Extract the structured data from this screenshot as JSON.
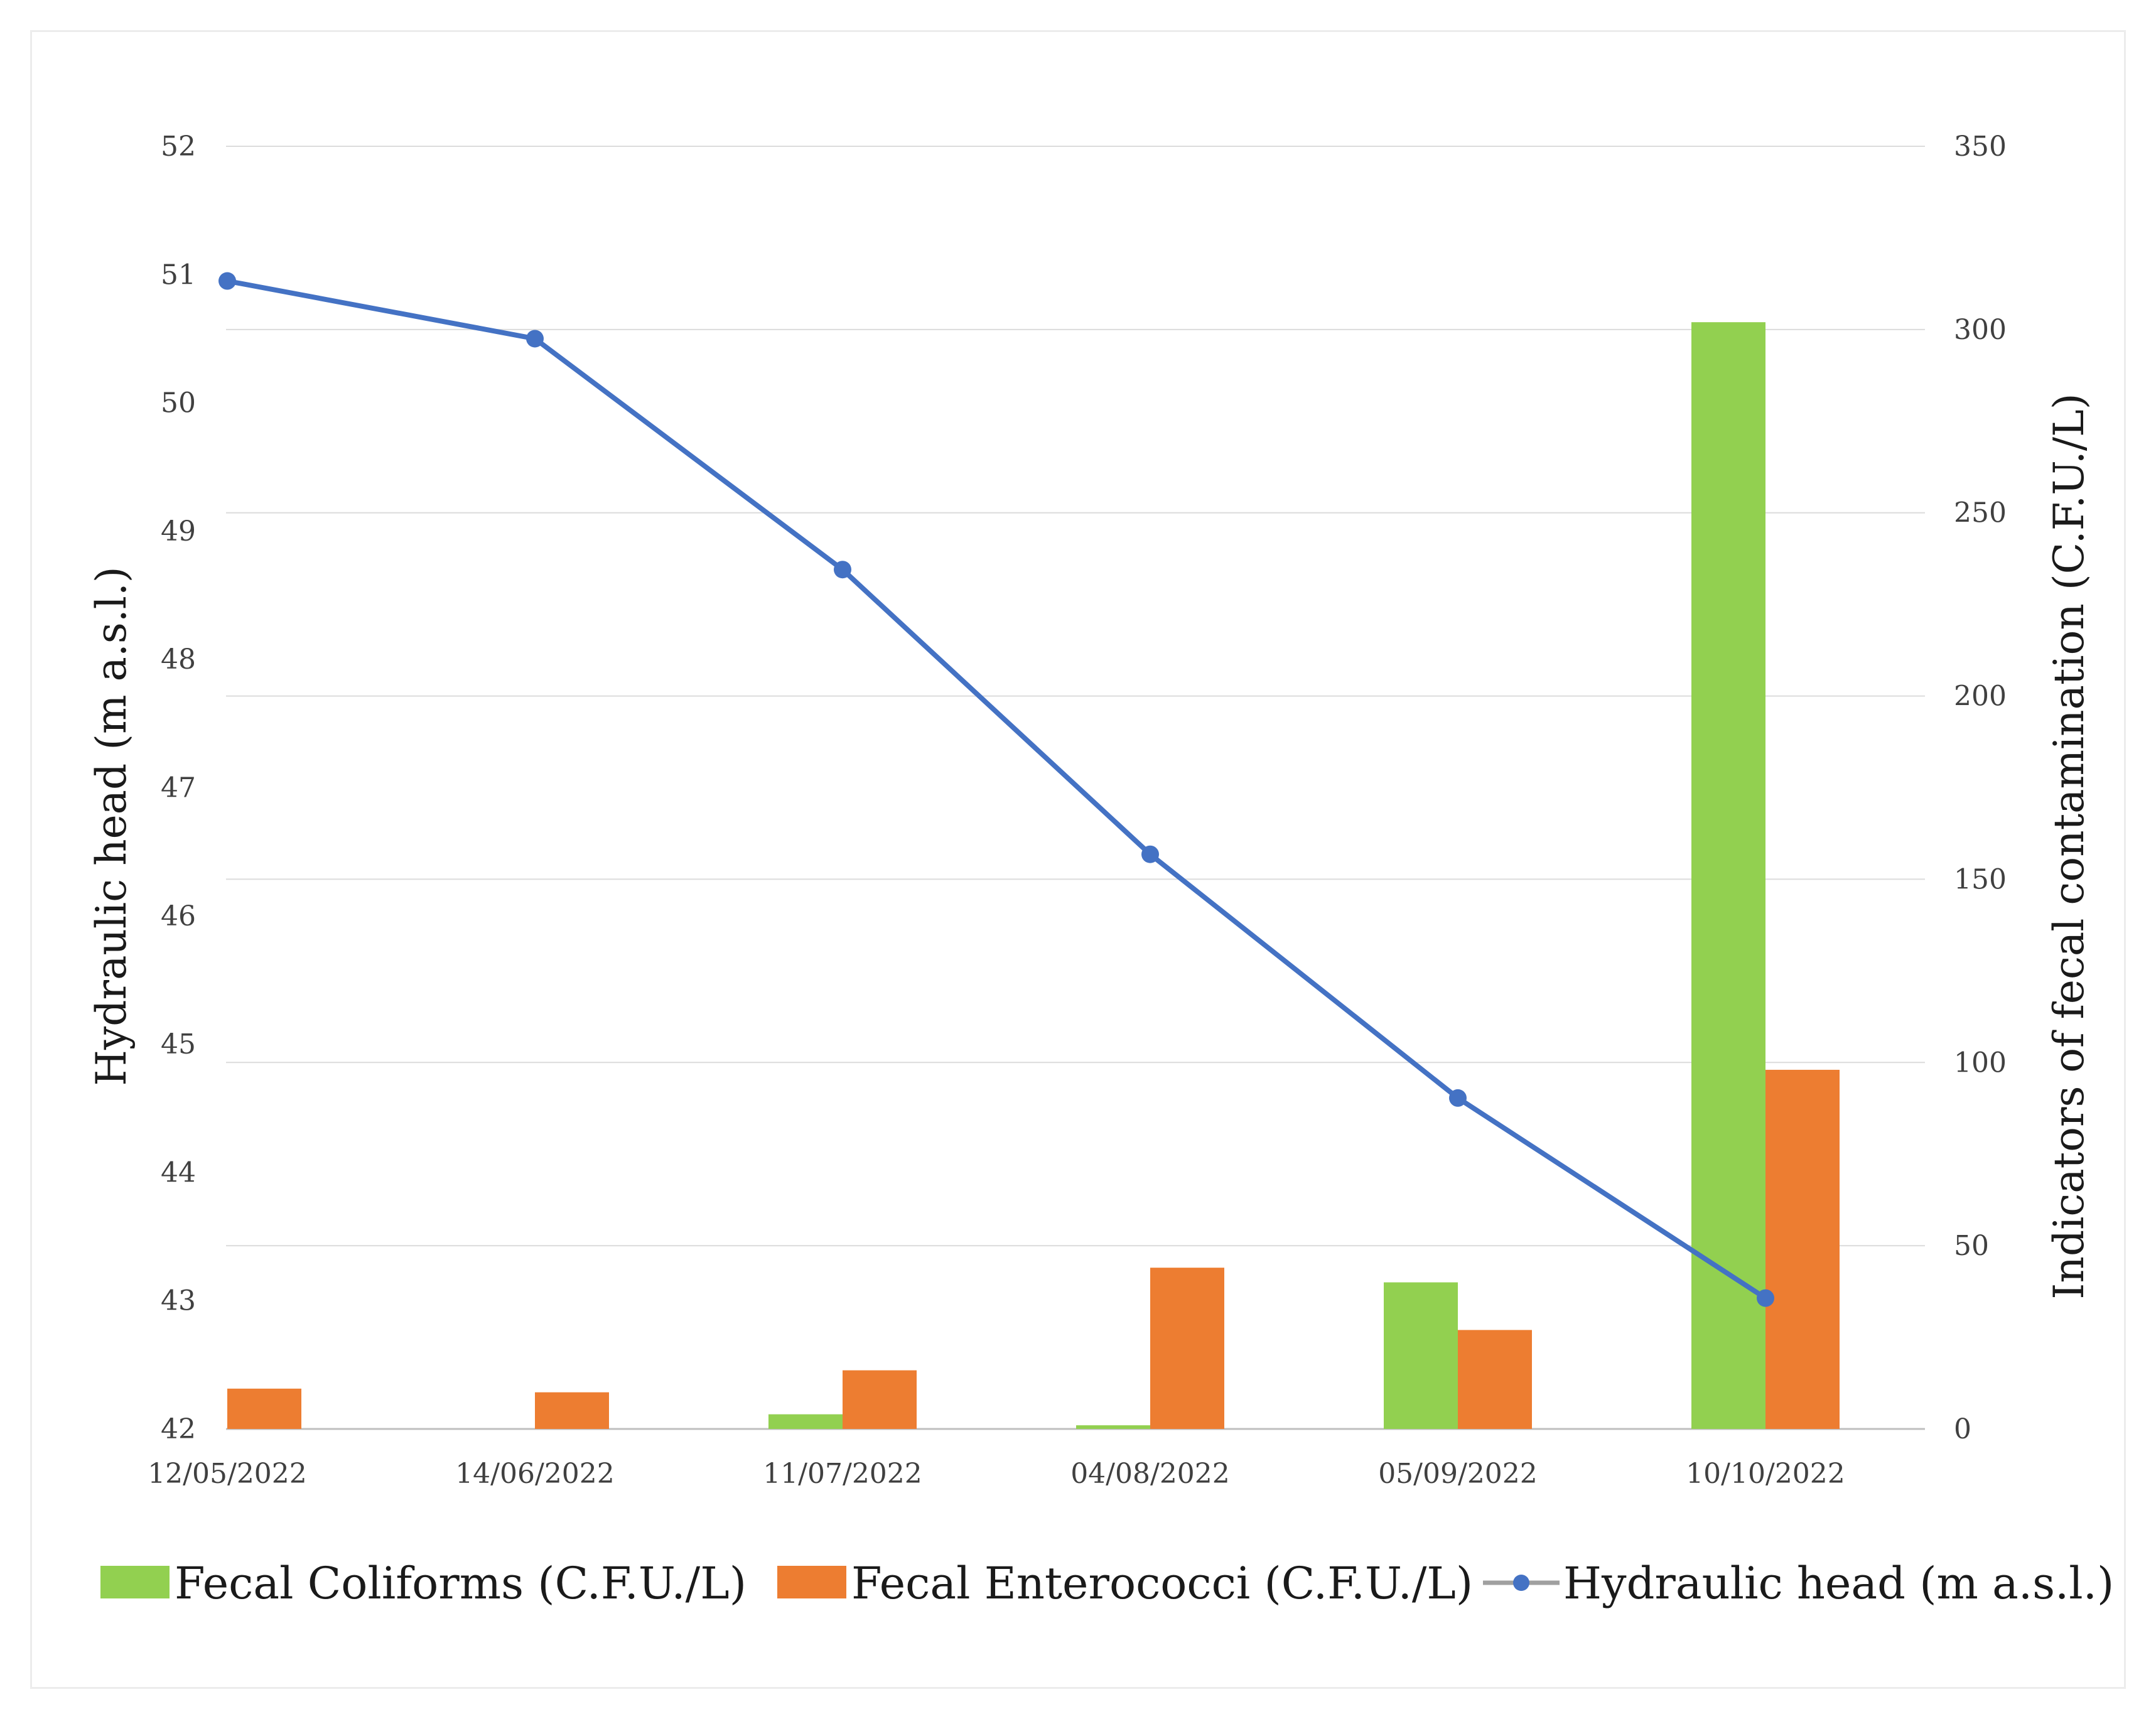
{
  "chart_data": {
    "type": "bar",
    "categories": [
      "12/05/2022",
      "14/06/2022",
      "11/07/2022",
      "04/08/2022",
      "05/09/2022",
      "10/10/2022"
    ],
    "series": [
      {
        "name": "Fecal Coliforms (C.F.U./L)",
        "kind": "bar",
        "axis": "right",
        "color": "#92d050",
        "values": [
          0,
          0,
          4,
          1,
          40,
          302
        ]
      },
      {
        "name": "Fecal Enterococci (C.F.U./L)",
        "kind": "bar",
        "axis": "right",
        "color": "#ed7d31",
        "values": [
          11,
          10,
          16,
          44,
          27,
          98
        ]
      },
      {
        "name": "Hydraulic head (m a.s.l.)",
        "kind": "line",
        "axis": "left",
        "color": "#4472c4",
        "values": [
          50.95,
          50.5,
          48.7,
          46.48,
          44.58,
          43.02
        ]
      }
    ],
    "y_left": {
      "label": "Hydraulic head (m  a.s.l.)",
      "lim": [
        42,
        52
      ],
      "ticks": [
        "42",
        "43",
        "44",
        "45",
        "46",
        "47",
        "48",
        "49",
        "50",
        "51",
        "52"
      ]
    },
    "y_right": {
      "label": "Indicators of fecal contamination (C.F.U./L)",
      "lim": [
        0,
        350
      ],
      "ticks": [
        "0",
        "50",
        "100",
        "150",
        "200",
        "250",
        "300",
        "350"
      ]
    },
    "grid": true,
    "legend_position": "bottom"
  }
}
